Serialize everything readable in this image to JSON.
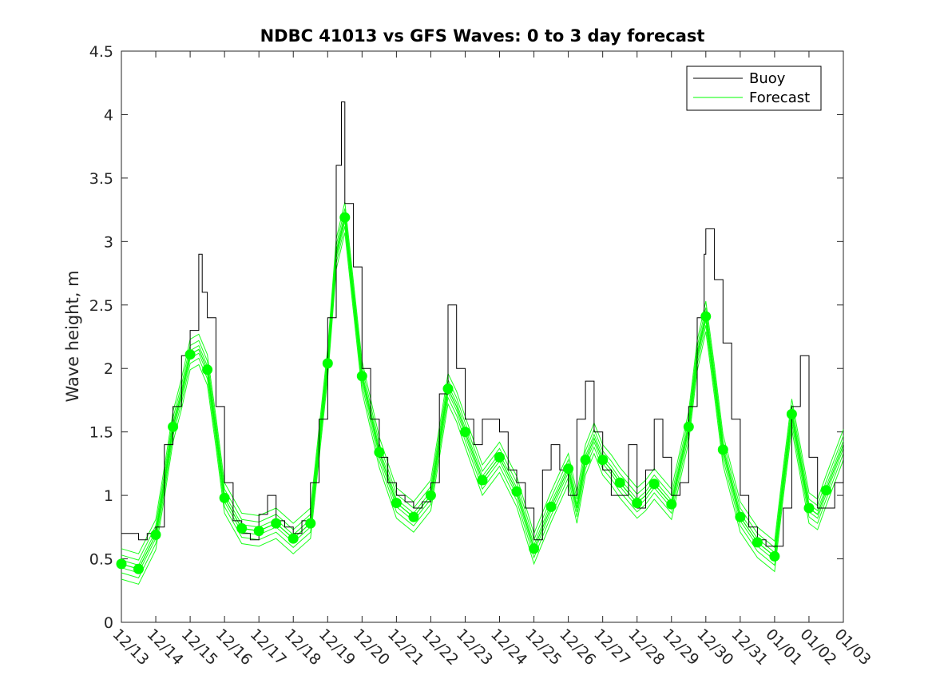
{
  "chart_data": {
    "type": "line",
    "title": "NDBC 41013 vs GFS Waves: 0 to 3 day forecast",
    "xlabel": "",
    "ylabel": "Wave height, m",
    "x_unit": "days since 12/13",
    "xlim": [
      0,
      21
    ],
    "ylim": [
      0,
      4.5
    ],
    "yticks": [
      0,
      0.5,
      1,
      1.5,
      2,
      2.5,
      3,
      3.5,
      4,
      4.5
    ],
    "ytick_labels": [
      "0",
      "0.5",
      "1",
      "1.5",
      "2",
      "2.5",
      "3",
      "3.5",
      "4",
      "4.5"
    ],
    "xticks": [
      0,
      1,
      2,
      3,
      4,
      5,
      6,
      7,
      8,
      9,
      10,
      11,
      12,
      13,
      14,
      15,
      16,
      17,
      18,
      19,
      20,
      21
    ],
    "xtick_labels": [
      "12/13",
      "12/14",
      "12/15",
      "12/16",
      "12/17",
      "12/18",
      "12/19",
      "12/20",
      "12/21",
      "12/22",
      "12/23",
      "12/24",
      "12/25",
      "12/26",
      "12/27",
      "12/28",
      "12/29",
      "12/30",
      "12/31",
      "01/01",
      "01/02",
      "01/03"
    ],
    "legend": {
      "location": "top-right",
      "entries": [
        "Buoy",
        "Forecast"
      ]
    },
    "colors": {
      "buoy": "#000000",
      "forecast": "#00ff00",
      "axis": "#262626"
    },
    "buoy": {
      "name": "Buoy",
      "x": [
        0,
        0.25,
        0.5,
        0.75,
        1,
        1.25,
        1.5,
        1.75,
        2,
        2.25,
        2.35,
        2.5,
        2.75,
        3,
        3.25,
        3.5,
        3.75,
        4,
        4.25,
        4.5,
        4.75,
        5,
        5.25,
        5.5,
        5.75,
        6,
        6.25,
        6.4,
        6.5,
        6.75,
        7,
        7.25,
        7.5,
        7.75,
        8,
        8.25,
        8.5,
        8.75,
        9,
        9.25,
        9.5,
        9.75,
        10,
        10.25,
        10.5,
        10.75,
        11,
        11.25,
        11.5,
        11.75,
        12,
        12.25,
        12.5,
        12.75,
        13,
        13.25,
        13.5,
        13.75,
        14,
        14.25,
        14.5,
        14.75,
        15,
        15.25,
        15.5,
        15.75,
        16,
        16.25,
        16.5,
        16.75,
        16.95,
        17,
        17.25,
        17.5,
        17.75,
        18,
        18.25,
        18.5,
        18.75,
        19,
        19.25,
        19.5,
        19.75,
        20,
        20.25,
        20.5,
        20.75,
        21
      ],
      "y": [
        0.7,
        0.7,
        0.65,
        0.7,
        0.75,
        1.4,
        1.7,
        2.1,
        2.3,
        2.9,
        2.6,
        2.4,
        1.7,
        1.1,
        0.8,
        0.7,
        0.65,
        0.85,
        1.0,
        0.8,
        0.75,
        0.7,
        0.8,
        1.1,
        1.6,
        2.4,
        3.6,
        4.1,
        3.3,
        2.8,
        2.0,
        1.6,
        1.3,
        1.1,
        1.0,
        0.95,
        0.9,
        0.95,
        1.1,
        1.8,
        2.5,
        2.0,
        1.6,
        1.4,
        1.6,
        1.6,
        1.5,
        1.2,
        1.1,
        0.9,
        0.65,
        1.2,
        1.4,
        1.2,
        1.0,
        1.6,
        1.9,
        1.5,
        1.2,
        1.0,
        1.0,
        1.4,
        0.9,
        1.2,
        1.6,
        1.3,
        1.0,
        1.1,
        1.7,
        2.4,
        2.9,
        3.1,
        2.7,
        2.2,
        1.6,
        1.0,
        0.75,
        0.65,
        0.6,
        0.6,
        0.9,
        1.7,
        2.1,
        1.3,
        0.9,
        0.9,
        1.1,
        1.4
      ]
    },
    "forecast": {
      "name": "Forecast",
      "x": [
        0,
        0.5,
        1,
        1.25,
        1.5,
        1.75,
        2,
        2.25,
        2.5,
        2.75,
        3,
        3.5,
        4,
        4.5,
        5,
        5.5,
        6,
        6.25,
        6.5,
        7,
        7.5,
        8,
        8.5,
        9,
        9.5,
        9.75,
        10,
        10.5,
        11,
        11.5,
        12,
        12.5,
        13,
        13.25,
        13.5,
        13.75,
        14,
        14.25,
        14.5,
        15,
        15.25,
        15.5,
        16,
        16.5,
        16.75,
        17,
        17.25,
        17.5,
        18,
        18.5,
        19,
        19.25,
        19.5,
        20,
        20.25,
        20.5,
        21
      ],
      "y": [
        0.46,
        0.42,
        0.69,
        1.1,
        1.54,
        1.8,
        2.11,
        2.15,
        1.99,
        1.5,
        0.98,
        0.74,
        0.72,
        0.78,
        0.66,
        0.78,
        2.04,
        2.9,
        3.19,
        1.94,
        1.34,
        0.94,
        0.83,
        1.0,
        1.84,
        1.7,
        1.5,
        1.12,
        1.3,
        1.03,
        0.58,
        0.91,
        1.21,
        0.9,
        1.28,
        1.45,
        1.28,
        1.2,
        1.1,
        0.94,
        1.0,
        1.09,
        0.93,
        1.54,
        2.1,
        2.41,
        1.9,
        1.36,
        0.83,
        0.63,
        0.52,
        1.1,
        1.64,
        0.9,
        0.85,
        1.04,
        1.4
      ],
      "markers_x": [
        0,
        0.5,
        1,
        1.5,
        2,
        2.5,
        3,
        3.5,
        4,
        4.5,
        5,
        5.5,
        6,
        6.5,
        7,
        7.5,
        8,
        8.5,
        9,
        9.5,
        10,
        10.5,
        11,
        11.5,
        12,
        12.5,
        13,
        13.5,
        14,
        14.5,
        15,
        15.5,
        16,
        16.5,
        17,
        17.5,
        18,
        18.5,
        19,
        19.5,
        20,
        20.5
      ],
      "markers_y": [
        0.46,
        0.42,
        0.69,
        1.54,
        2.11,
        1.99,
        0.98,
        0.74,
        0.72,
        0.78,
        0.66,
        0.78,
        2.04,
        3.19,
        1.94,
        1.34,
        0.94,
        0.83,
        1.0,
        1.84,
        1.5,
        1.12,
        1.3,
        1.03,
        0.58,
        0.91,
        1.21,
        1.28,
        1.28,
        1.1,
        0.94,
        1.09,
        0.93,
        1.54,
        2.41,
        1.36,
        0.83,
        0.63,
        0.52,
        1.64,
        0.9,
        1.04
      ]
    }
  }
}
